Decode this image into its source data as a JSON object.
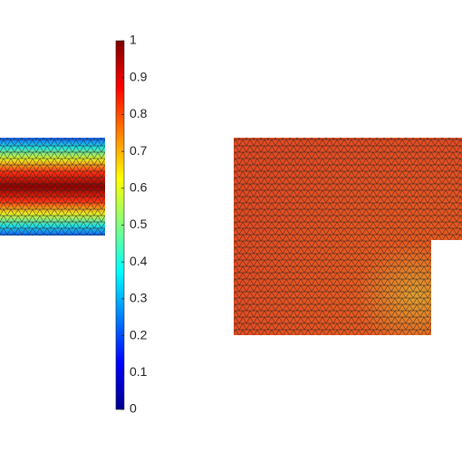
{
  "chart_data": {
    "type": "heatmap",
    "ylim": [
      0,
      1
    ],
    "yticks": [
      0,
      0.1,
      0.2,
      0.3,
      0.4,
      0.5,
      0.6,
      0.7,
      0.8,
      0.9,
      1
    ]
  }
}
